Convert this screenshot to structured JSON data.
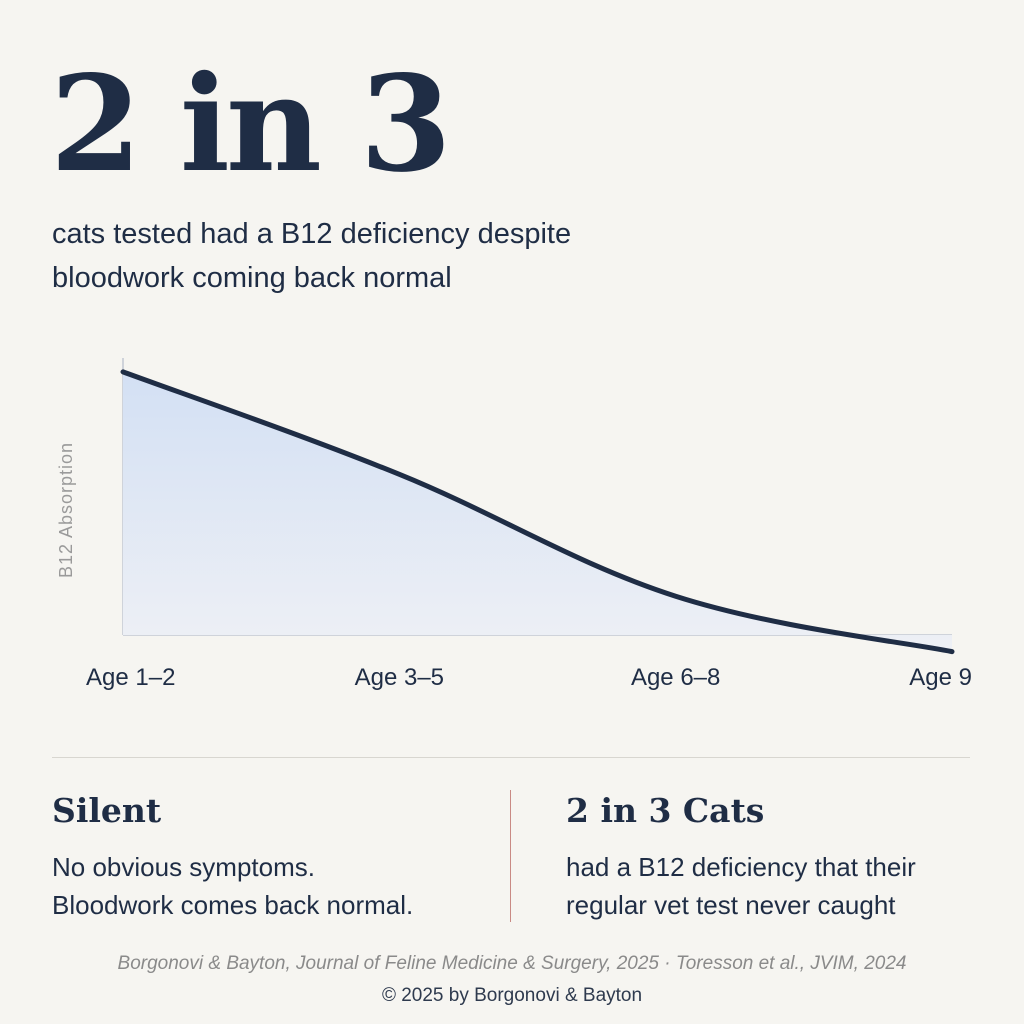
{
  "headline": "2 in 3",
  "subhead": "cats tested had a B12 deficiency despite bloodwork coming back normal",
  "chart_data": {
    "type": "area",
    "title": "",
    "ylabel": "B12 Absorption",
    "xlabel": "",
    "categories": [
      "Age 1–2",
      "Age 3–5",
      "Age 6–8",
      "Age 9"
    ],
    "series": [
      {
        "values": [
          0.95,
          0.58,
          0.14,
          -0.06
        ]
      }
    ],
    "ylim": [
      0,
      1
    ],
    "grid": false,
    "y_tick_labels": false,
    "colors": {
      "line": "#1f2d45",
      "fill_top": "#d3e0f4",
      "fill_bottom": "#eef0f5",
      "axis": "#cfd3da"
    }
  },
  "cards": [
    {
      "title": "Silent",
      "lines": [
        "No obvious symptoms.",
        "Bloodwork comes back normal."
      ]
    },
    {
      "title": "2 in 3 Cats",
      "lines": [
        "had a B12 deficiency that their",
        "regular vet test never caught"
      ]
    }
  ],
  "citation": "Borgonovi & Bayton, Journal of Feline Medicine & Surgery, 2025 · Toresson et al., JVIM, 2024",
  "copyright": "© 2025 by Borgonovi & Bayton"
}
